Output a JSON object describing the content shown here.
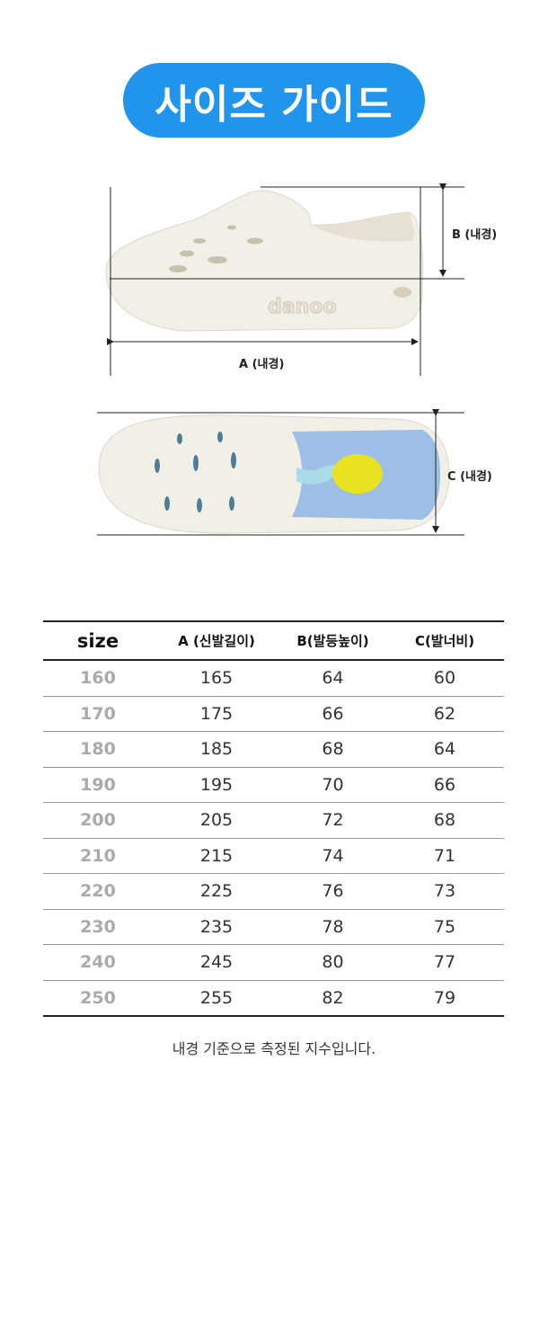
{
  "title": "사이즈 가이드",
  "colors": {
    "accent": "#2195ec"
  },
  "diagram": {
    "label_a": "A (내경)",
    "label_b": "B (내경)",
    "label_c": "C (내경)",
    "brand_emboss": "danoo"
  },
  "table": {
    "headers": [
      "size",
      "A (신발길이)",
      "B(발등높이)",
      "C(발너비)"
    ],
    "rows": [
      [
        "160",
        "165",
        "64",
        "60"
      ],
      [
        "170",
        "175",
        "66",
        "62"
      ],
      [
        "180",
        "185",
        "68",
        "64"
      ],
      [
        "190",
        "195",
        "70",
        "66"
      ],
      [
        "200",
        "205",
        "72",
        "68"
      ],
      [
        "210",
        "215",
        "74",
        "71"
      ],
      [
        "220",
        "225",
        "76",
        "73"
      ],
      [
        "230",
        "235",
        "78",
        "75"
      ],
      [
        "240",
        "245",
        "80",
        "77"
      ],
      [
        "250",
        "255",
        "82",
        "79"
      ]
    ]
  },
  "note": "내경 기준으로 측정된 지수입니다."
}
